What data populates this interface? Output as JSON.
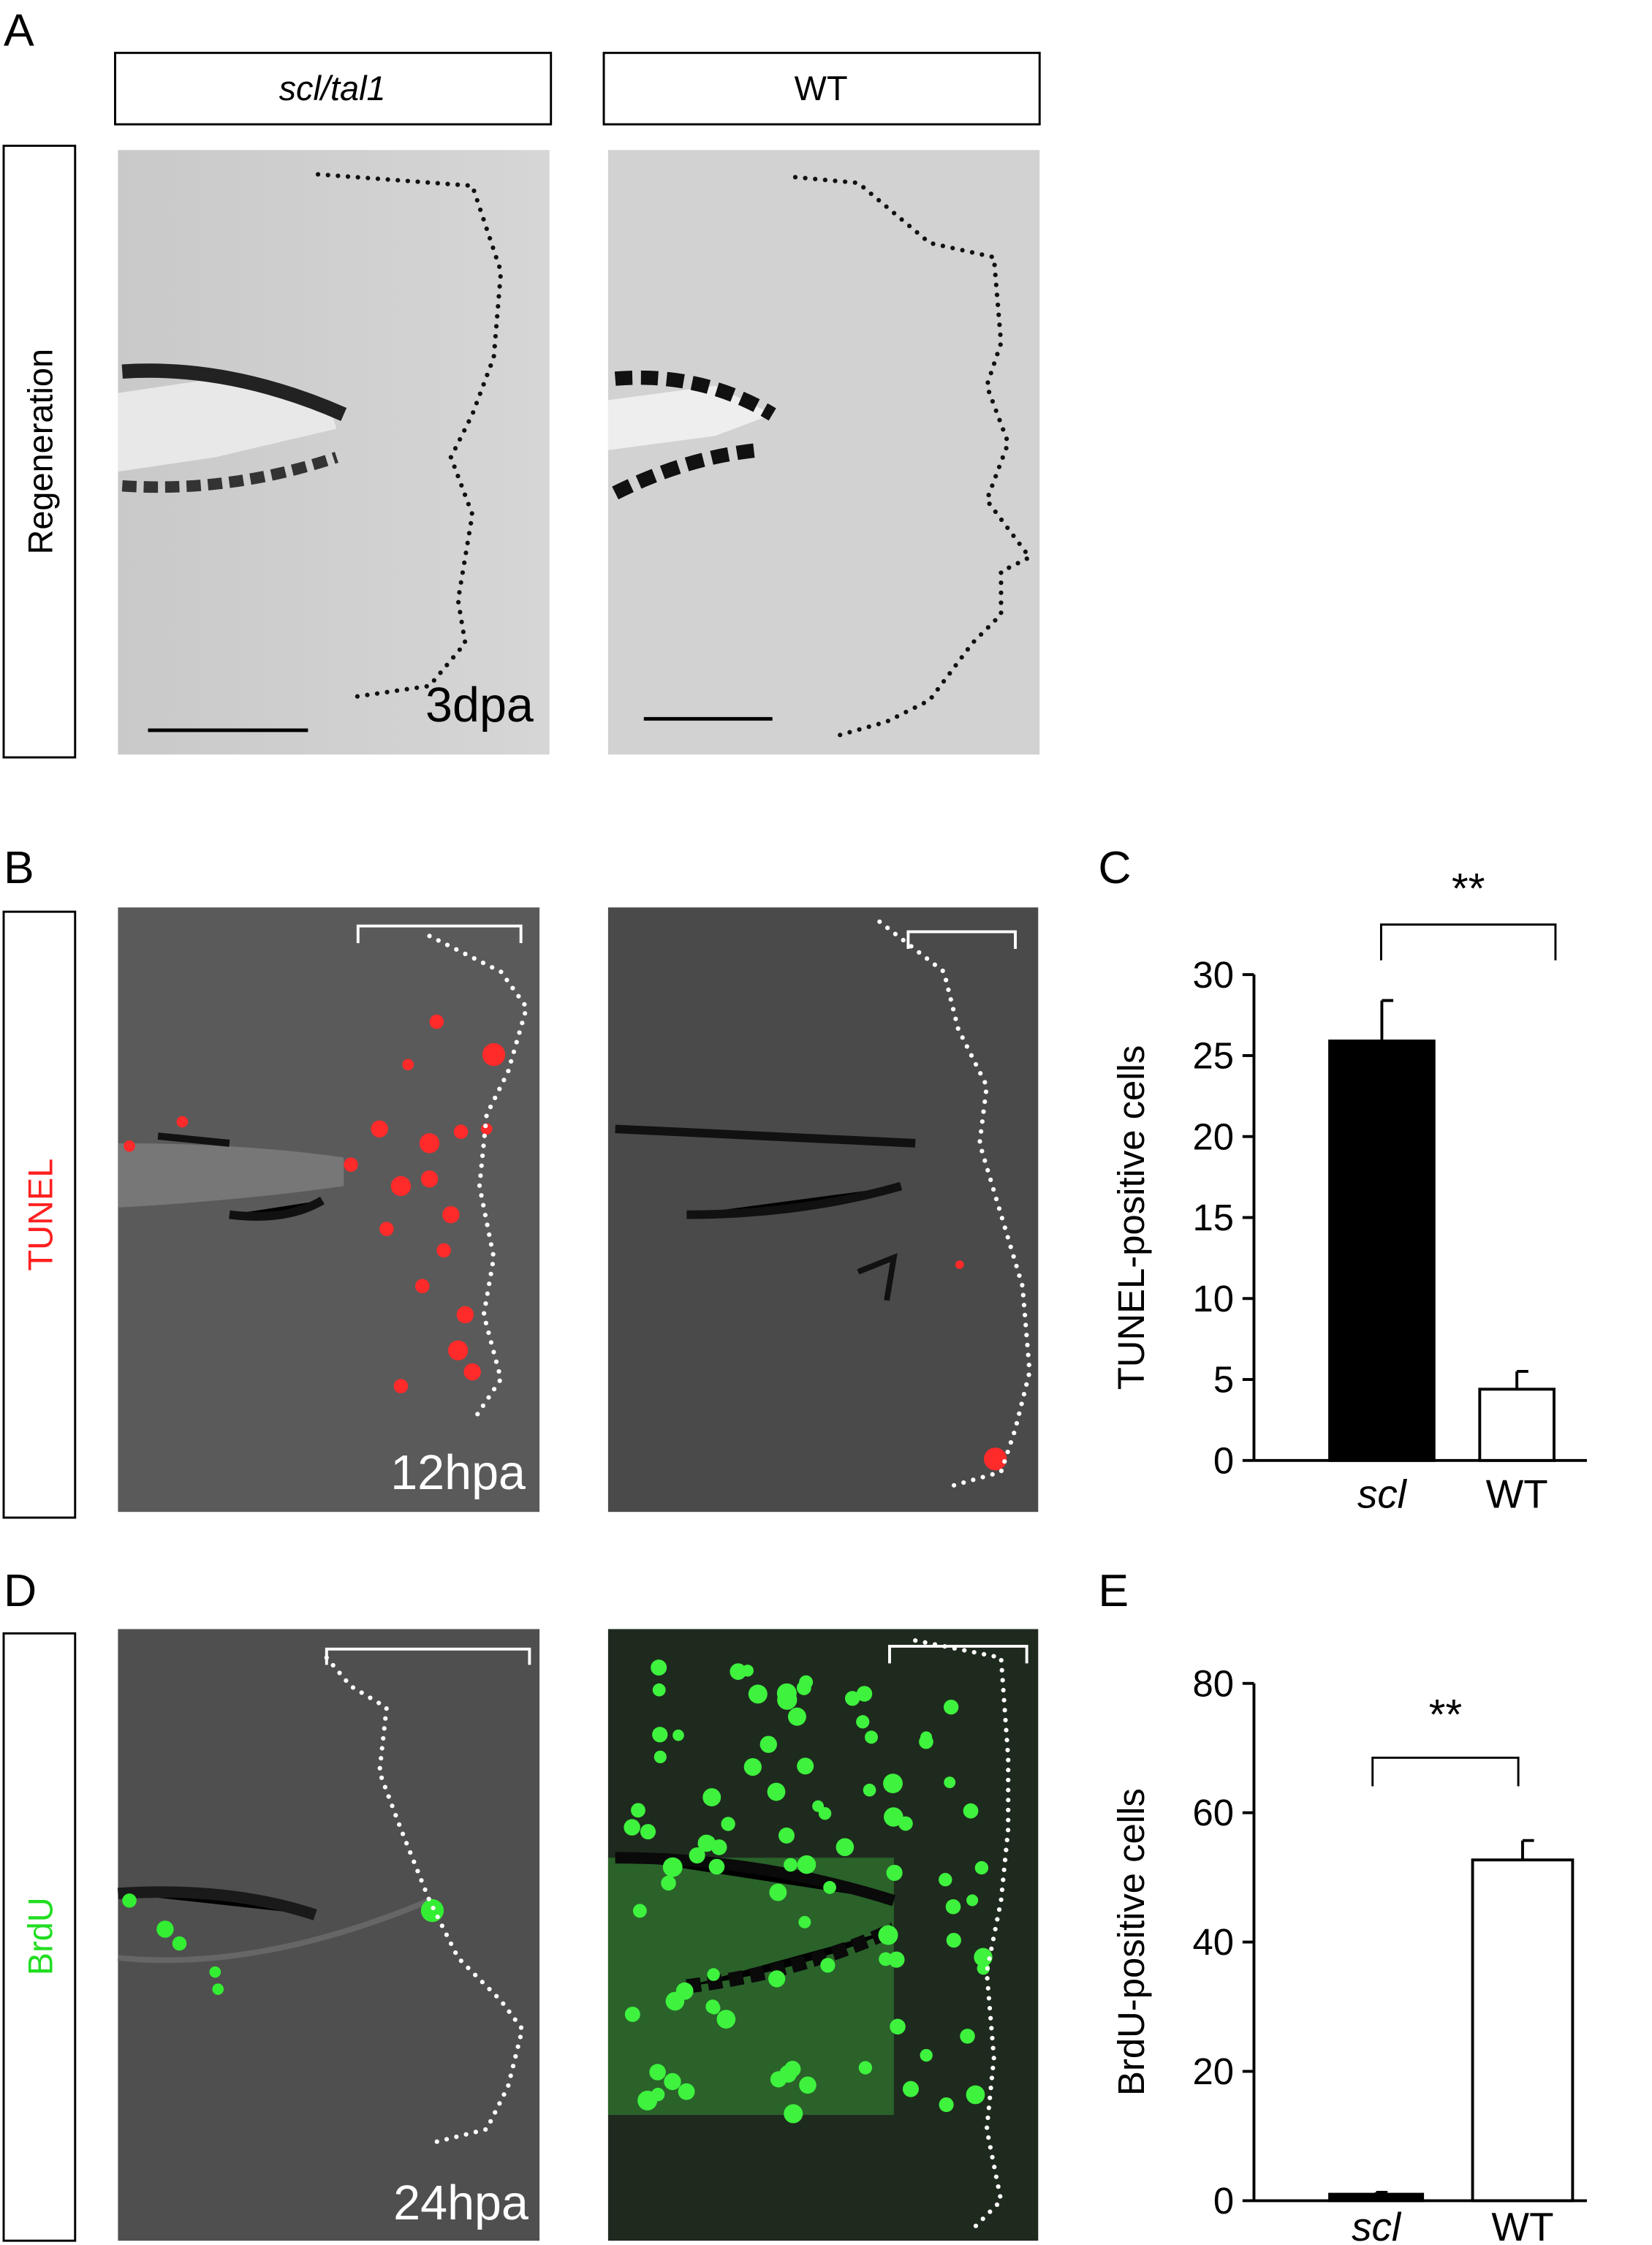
{
  "panel_labels": [
    "A",
    "B",
    "C",
    "D",
    "E"
  ],
  "column_headers": [
    "scl/tal1",
    "WT"
  ],
  "row_labels": [
    "Regeneration",
    "TUNEL",
    "BrdU"
  ],
  "time_labels": [
    "3dpa",
    "12hpa",
    "24hpa"
  ],
  "chart_data": [
    {
      "type": "bar",
      "annotation": "**",
      "y_label": "TUNEL-positive cells",
      "categories": [
        "scl",
        "WT"
      ],
      "values": [
        25.9,
        4.4
      ],
      "errors": [
        2.5,
        1.1
      ],
      "colors": [
        "#000000",
        "#ffffff"
      ],
      "ylim": [
        0,
        30
      ],
      "yticks": [
        0,
        5,
        10,
        15,
        20,
        25,
        30
      ]
    },
    {
      "type": "bar",
      "annotation": "**",
      "y_label": "BrdU-positive cells",
      "categories": [
        "scl",
        "WT"
      ],
      "values": [
        1,
        52.7
      ],
      "errors": [
        0.3,
        3
      ],
      "colors": [
        "#000000",
        "#ffffff"
      ],
      "ylim": [
        0,
        80
      ],
      "yticks": [
        0,
        20,
        40,
        60,
        80
      ]
    }
  ]
}
